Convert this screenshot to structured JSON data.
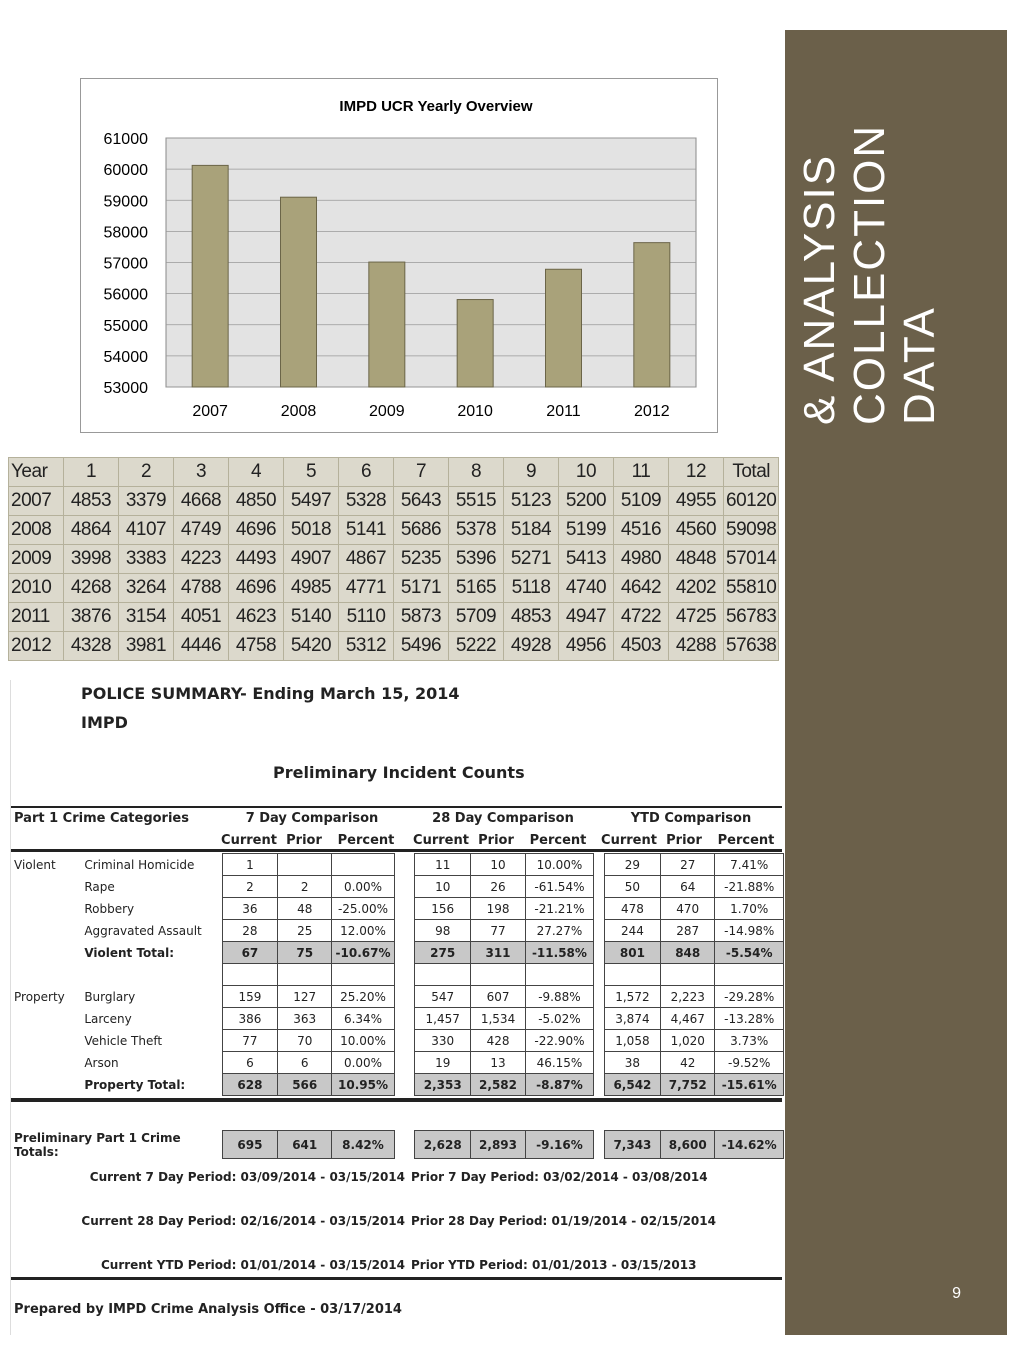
{
  "chart_data": {
    "type": "bar",
    "title": "IMPD UCR Yearly Overview",
    "categories": [
      "2007",
      "2008",
      "2009",
      "2010",
      "2011",
      "2012"
    ],
    "values": [
      60120,
      59098,
      57014,
      55810,
      56783,
      57638
    ],
    "ylim": [
      53000,
      61000
    ],
    "yticks": [
      "53000",
      "54000",
      "55000",
      "56000",
      "57000",
      "58000",
      "59000",
      "60000",
      "61000"
    ],
    "xlabel": "",
    "ylabel": "",
    "grid": true,
    "bar_color": "#a9a27a"
  },
  "yearly_table": {
    "headers": [
      "Year",
      "1",
      "2",
      "3",
      "4",
      "5",
      "6",
      "7",
      "8",
      "9",
      "10",
      "11",
      "12",
      "Total"
    ],
    "rows": [
      [
        "2007",
        "4853",
        "3379",
        "4668",
        "4850",
        "5497",
        "5328",
        "5643",
        "5515",
        "5123",
        "5200",
        "5109",
        "4955",
        "60120"
      ],
      [
        "2008",
        "4864",
        "4107",
        "4749",
        "4696",
        "5018",
        "5141",
        "5686",
        "5378",
        "5184",
        "5199",
        "4516",
        "4560",
        "59098"
      ],
      [
        "2009",
        "3998",
        "3383",
        "4223",
        "4493",
        "4907",
        "4867",
        "5235",
        "5396",
        "5271",
        "5413",
        "4980",
        "4848",
        "57014"
      ],
      [
        "2010",
        "4268",
        "3264",
        "4788",
        "4696",
        "4985",
        "4771",
        "5171",
        "5165",
        "5118",
        "4740",
        "4642",
        "4202",
        "55810"
      ],
      [
        "2011",
        "3876",
        "3154",
        "4051",
        "4623",
        "5140",
        "5110",
        "5873",
        "5709",
        "4853",
        "4947",
        "4722",
        "4725",
        "56783"
      ],
      [
        "2012",
        "4328",
        "3981",
        "4446",
        "4758",
        "5420",
        "5312",
        "5496",
        "5222",
        "4928",
        "4956",
        "4503",
        "4288",
        "57638"
      ]
    ]
  },
  "summary": {
    "title": "POLICE SUMMARY- Ending March 15, 2014",
    "agency": "IMPD",
    "subtitle": "Preliminary Incident Counts",
    "categories_header": "Part 1 Crime Categories",
    "groups": [
      "7 Day Comparison",
      "28 Day Comparison",
      "YTD Comparison"
    ],
    "subheaders": [
      "Current",
      "Prior",
      "Percent"
    ],
    "rows": [
      {
        "group": "Violent",
        "label": "Criminal Homicide",
        "v": [
          "1",
          "",
          "",
          "11",
          "10",
          "10.00%",
          "29",
          "27",
          "7.41%"
        ]
      },
      {
        "group": "",
        "label": "Rape",
        "v": [
          "2",
          "2",
          "0.00%",
          "10",
          "26",
          "-61.54%",
          "50",
          "64",
          "-21.88%"
        ]
      },
      {
        "group": "",
        "label": "Robbery",
        "v": [
          "36",
          "48",
          "-25.00%",
          "156",
          "198",
          "-21.21%",
          "478",
          "470",
          "1.70%"
        ]
      },
      {
        "group": "",
        "label": "Aggravated Assault",
        "v": [
          "28",
          "25",
          "12.00%",
          "98",
          "77",
          "27.27%",
          "244",
          "287",
          "-14.98%"
        ]
      },
      {
        "group": "",
        "label": "Violent Total:",
        "total": true,
        "v": [
          "67",
          "75",
          "-10.67%",
          "275",
          "311",
          "-11.58%",
          "801",
          "848",
          "-5.54%"
        ]
      },
      {
        "group": "",
        "label": "",
        "v": [
          "",
          "",
          "",
          "",
          "",
          "",
          "",
          "",
          ""
        ]
      },
      {
        "group": "Property",
        "label": "Burglary",
        "v": [
          "159",
          "127",
          "25.20%",
          "547",
          "607",
          "-9.88%",
          "1,572",
          "2,223",
          "-29.28%"
        ]
      },
      {
        "group": "",
        "label": "Larceny",
        "v": [
          "386",
          "363",
          "6.34%",
          "1,457",
          "1,534",
          "-5.02%",
          "3,874",
          "4,467",
          "-13.28%"
        ]
      },
      {
        "group": "",
        "label": "Vehicle Theft",
        "v": [
          "77",
          "70",
          "10.00%",
          "330",
          "428",
          "-22.90%",
          "1,058",
          "1,020",
          "3.73%"
        ]
      },
      {
        "group": "",
        "label": "Arson",
        "v": [
          "6",
          "6",
          "0.00%",
          "19",
          "13",
          "46.15%",
          "38",
          "42",
          "-9.52%"
        ]
      },
      {
        "group": "",
        "label": "Property Total:",
        "total": true,
        "v": [
          "628",
          "566",
          "10.95%",
          "2,353",
          "2,582",
          "-8.87%",
          "6,542",
          "7,752",
          "-15.61%"
        ]
      }
    ],
    "grand_label": "Preliminary Part 1 Crime Totals:",
    "grand": [
      "695",
      "641",
      "8.42%",
      "2,628",
      "2,893",
      "-9.16%",
      "7,343",
      "8,600",
      "-14.62%"
    ],
    "periods": [
      [
        "Current 7 Day Period:  03/09/2014 - 03/15/2014",
        "Prior 7 Day Period: 03/02/2014 - 03/08/2014"
      ],
      [
        "Current 28 Day Period: 02/16/2014 - 03/15/2014",
        "Prior 28 Day Period: 01/19/2014 - 02/15/2014"
      ],
      [
        "Current YTD Period: 01/01/2014 - 03/15/2014",
        "Prior YTD Period: 01/01/2013 - 03/15/2013"
      ]
    ],
    "prepared": "Prepared by IMPD Crime Analysis Office - 03/17/2014"
  },
  "side": {
    "title_lines": [
      "DATA",
      "COLLECTION",
      "& ANALYSIS"
    ],
    "page_number": "9",
    "color": "#6b604a"
  }
}
